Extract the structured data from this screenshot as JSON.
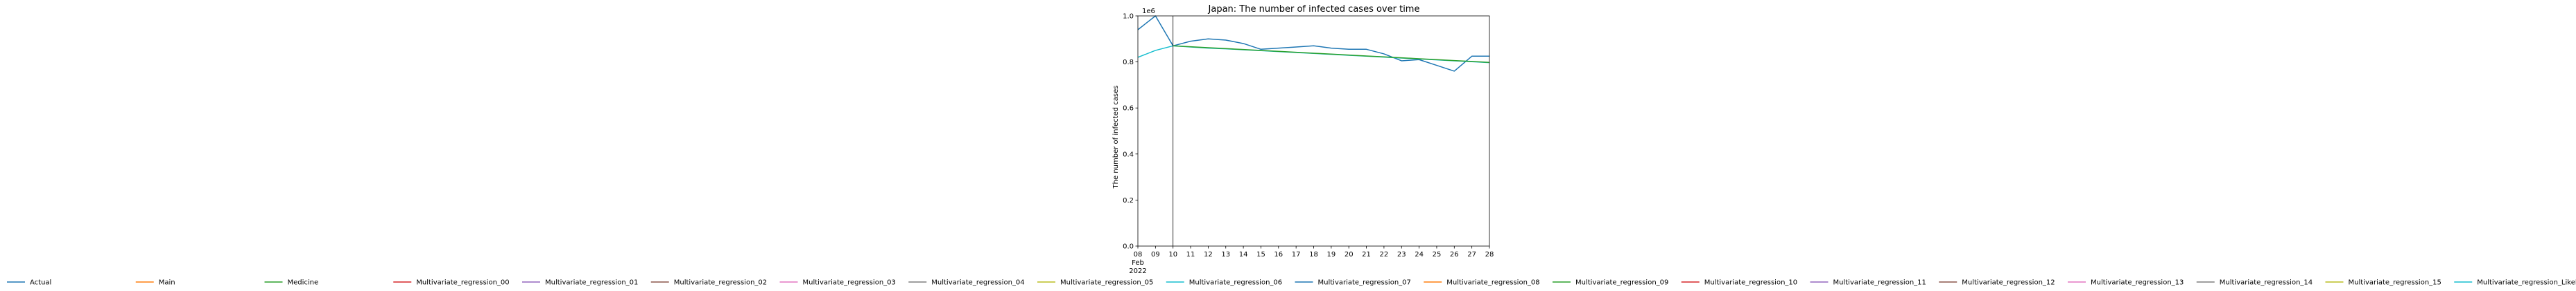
{
  "chart_data": {
    "type": "line",
    "title": "Japan: The number of infected cases over time",
    "xlabel": "",
    "ylabel": "The number of infected cases",
    "y_scale_label": "1e6",
    "x_start_label": "Feb\n2022",
    "x_tick_labels": [
      "08",
      "09",
      "10",
      "11",
      "12",
      "13",
      "14",
      "15",
      "16",
      "17",
      "18",
      "19",
      "20",
      "21",
      "22",
      "23",
      "24",
      "25",
      "26",
      "27",
      "28"
    ],
    "x_range": [
      "2022-02-08",
      "2022-02-28"
    ],
    "ylim": [
      0,
      1.0
    ],
    "y_ticks": [
      0.0,
      0.2,
      0.4,
      0.6,
      0.8,
      1.0
    ],
    "y_tick_labels": [
      "0.0",
      "0.2",
      "0.4",
      "0.6",
      "0.8",
      "1.0"
    ],
    "vline_x": "2022-02-10",
    "grid": false,
    "legend_position": "bottom",
    "legend": [
      {
        "name": "Actual",
        "color": "#1f77b4"
      },
      {
        "name": "Main",
        "color": "#ff7f0e"
      },
      {
        "name": "Medicine",
        "color": "#2ca02c"
      },
      {
        "name": "Multivariate_regression_00",
        "color": "#d62728"
      },
      {
        "name": "Multivariate_regression_01",
        "color": "#9467bd"
      },
      {
        "name": "Multivariate_regression_02",
        "color": "#8c564b"
      },
      {
        "name": "Multivariate_regression_03",
        "color": "#e377c2"
      },
      {
        "name": "Multivariate_regression_04",
        "color": "#7f7f7f"
      },
      {
        "name": "Multivariate_regression_05",
        "color": "#bcbd22"
      },
      {
        "name": "Multivariate_regression_06",
        "color": "#17becf"
      },
      {
        "name": "Multivariate_regression_07",
        "color": "#1f77b4"
      },
      {
        "name": "Multivariate_regression_08",
        "color": "#ff7f0e"
      },
      {
        "name": "Multivariate_regression_09",
        "color": "#2ca02c"
      },
      {
        "name": "Multivariate_regression_10",
        "color": "#d62728"
      },
      {
        "name": "Multivariate_regression_11",
        "color": "#9467bd"
      },
      {
        "name": "Multivariate_regression_12",
        "color": "#8c564b"
      },
      {
        "name": "Multivariate_regression_13",
        "color": "#e377c2"
      },
      {
        "name": "Multivariate_regression_14",
        "color": "#7f7f7f"
      },
      {
        "name": "Multivariate_regression_15",
        "color": "#bcbd22"
      },
      {
        "name": "Multivariate_regression_Likely",
        "color": "#17becf"
      }
    ],
    "series": [
      {
        "name": "Actual",
        "color": "#1f77b4",
        "x": [
          "2022-02-08",
          "2022-02-09",
          "2022-02-10",
          "2022-02-11",
          "2022-02-12",
          "2022-02-13",
          "2022-02-14",
          "2022-02-15",
          "2022-02-16",
          "2022-02-17",
          "2022-02-18",
          "2022-02-19",
          "2022-02-20",
          "2022-02-21",
          "2022-02-22",
          "2022-02-23",
          "2022-02-24",
          "2022-02-25",
          "2022-02-26",
          "2022-02-27",
          "2022-02-28"
        ],
        "values": [
          0.94,
          1.0,
          0.87,
          0.89,
          0.9,
          0.895,
          0.88,
          0.855,
          0.86,
          0.865,
          0.87,
          0.86,
          0.855,
          0.855,
          0.835,
          0.805,
          0.81,
          0.785,
          0.76,
          0.825,
          0.825
        ]
      },
      {
        "name": "Multivariate_regression_Likely",
        "color": "#17becf",
        "x": [
          "2022-02-08",
          "2022-02-09",
          "2022-02-10",
          "2022-02-11",
          "2022-02-12",
          "2022-02-13",
          "2022-02-14",
          "2022-02-15",
          "2022-02-16",
          "2022-02-17",
          "2022-02-18",
          "2022-02-19",
          "2022-02-20",
          "2022-02-21",
          "2022-02-22",
          "2022-02-23",
          "2022-02-24",
          "2022-02-25",
          "2022-02-26",
          "2022-02-27",
          "2022-02-28"
        ],
        "values": [
          0.82,
          0.85,
          0.87,
          0.865,
          0.86,
          0.857,
          0.853,
          0.849,
          0.845,
          0.841,
          0.837,
          0.833,
          0.829,
          0.825,
          0.821,
          0.817,
          0.813,
          0.809,
          0.805,
          0.801,
          0.797
        ]
      },
      {
        "name": "Medicine",
        "color": "#2ca02c",
        "x": [
          "2022-02-10",
          "2022-02-11",
          "2022-02-12",
          "2022-02-13",
          "2022-02-14",
          "2022-02-15",
          "2022-02-16",
          "2022-02-17",
          "2022-02-18",
          "2022-02-19",
          "2022-02-20",
          "2022-02-21",
          "2022-02-22",
          "2022-02-23",
          "2022-02-24",
          "2022-02-25",
          "2022-02-26",
          "2022-02-27",
          "2022-02-28"
        ],
        "values": [
          0.87,
          0.866,
          0.862,
          0.858,
          0.854,
          0.85,
          0.846,
          0.842,
          0.838,
          0.834,
          0.83,
          0.826,
          0.822,
          0.818,
          0.814,
          0.81,
          0.806,
          0.802,
          0.798
        ]
      }
    ]
  }
}
